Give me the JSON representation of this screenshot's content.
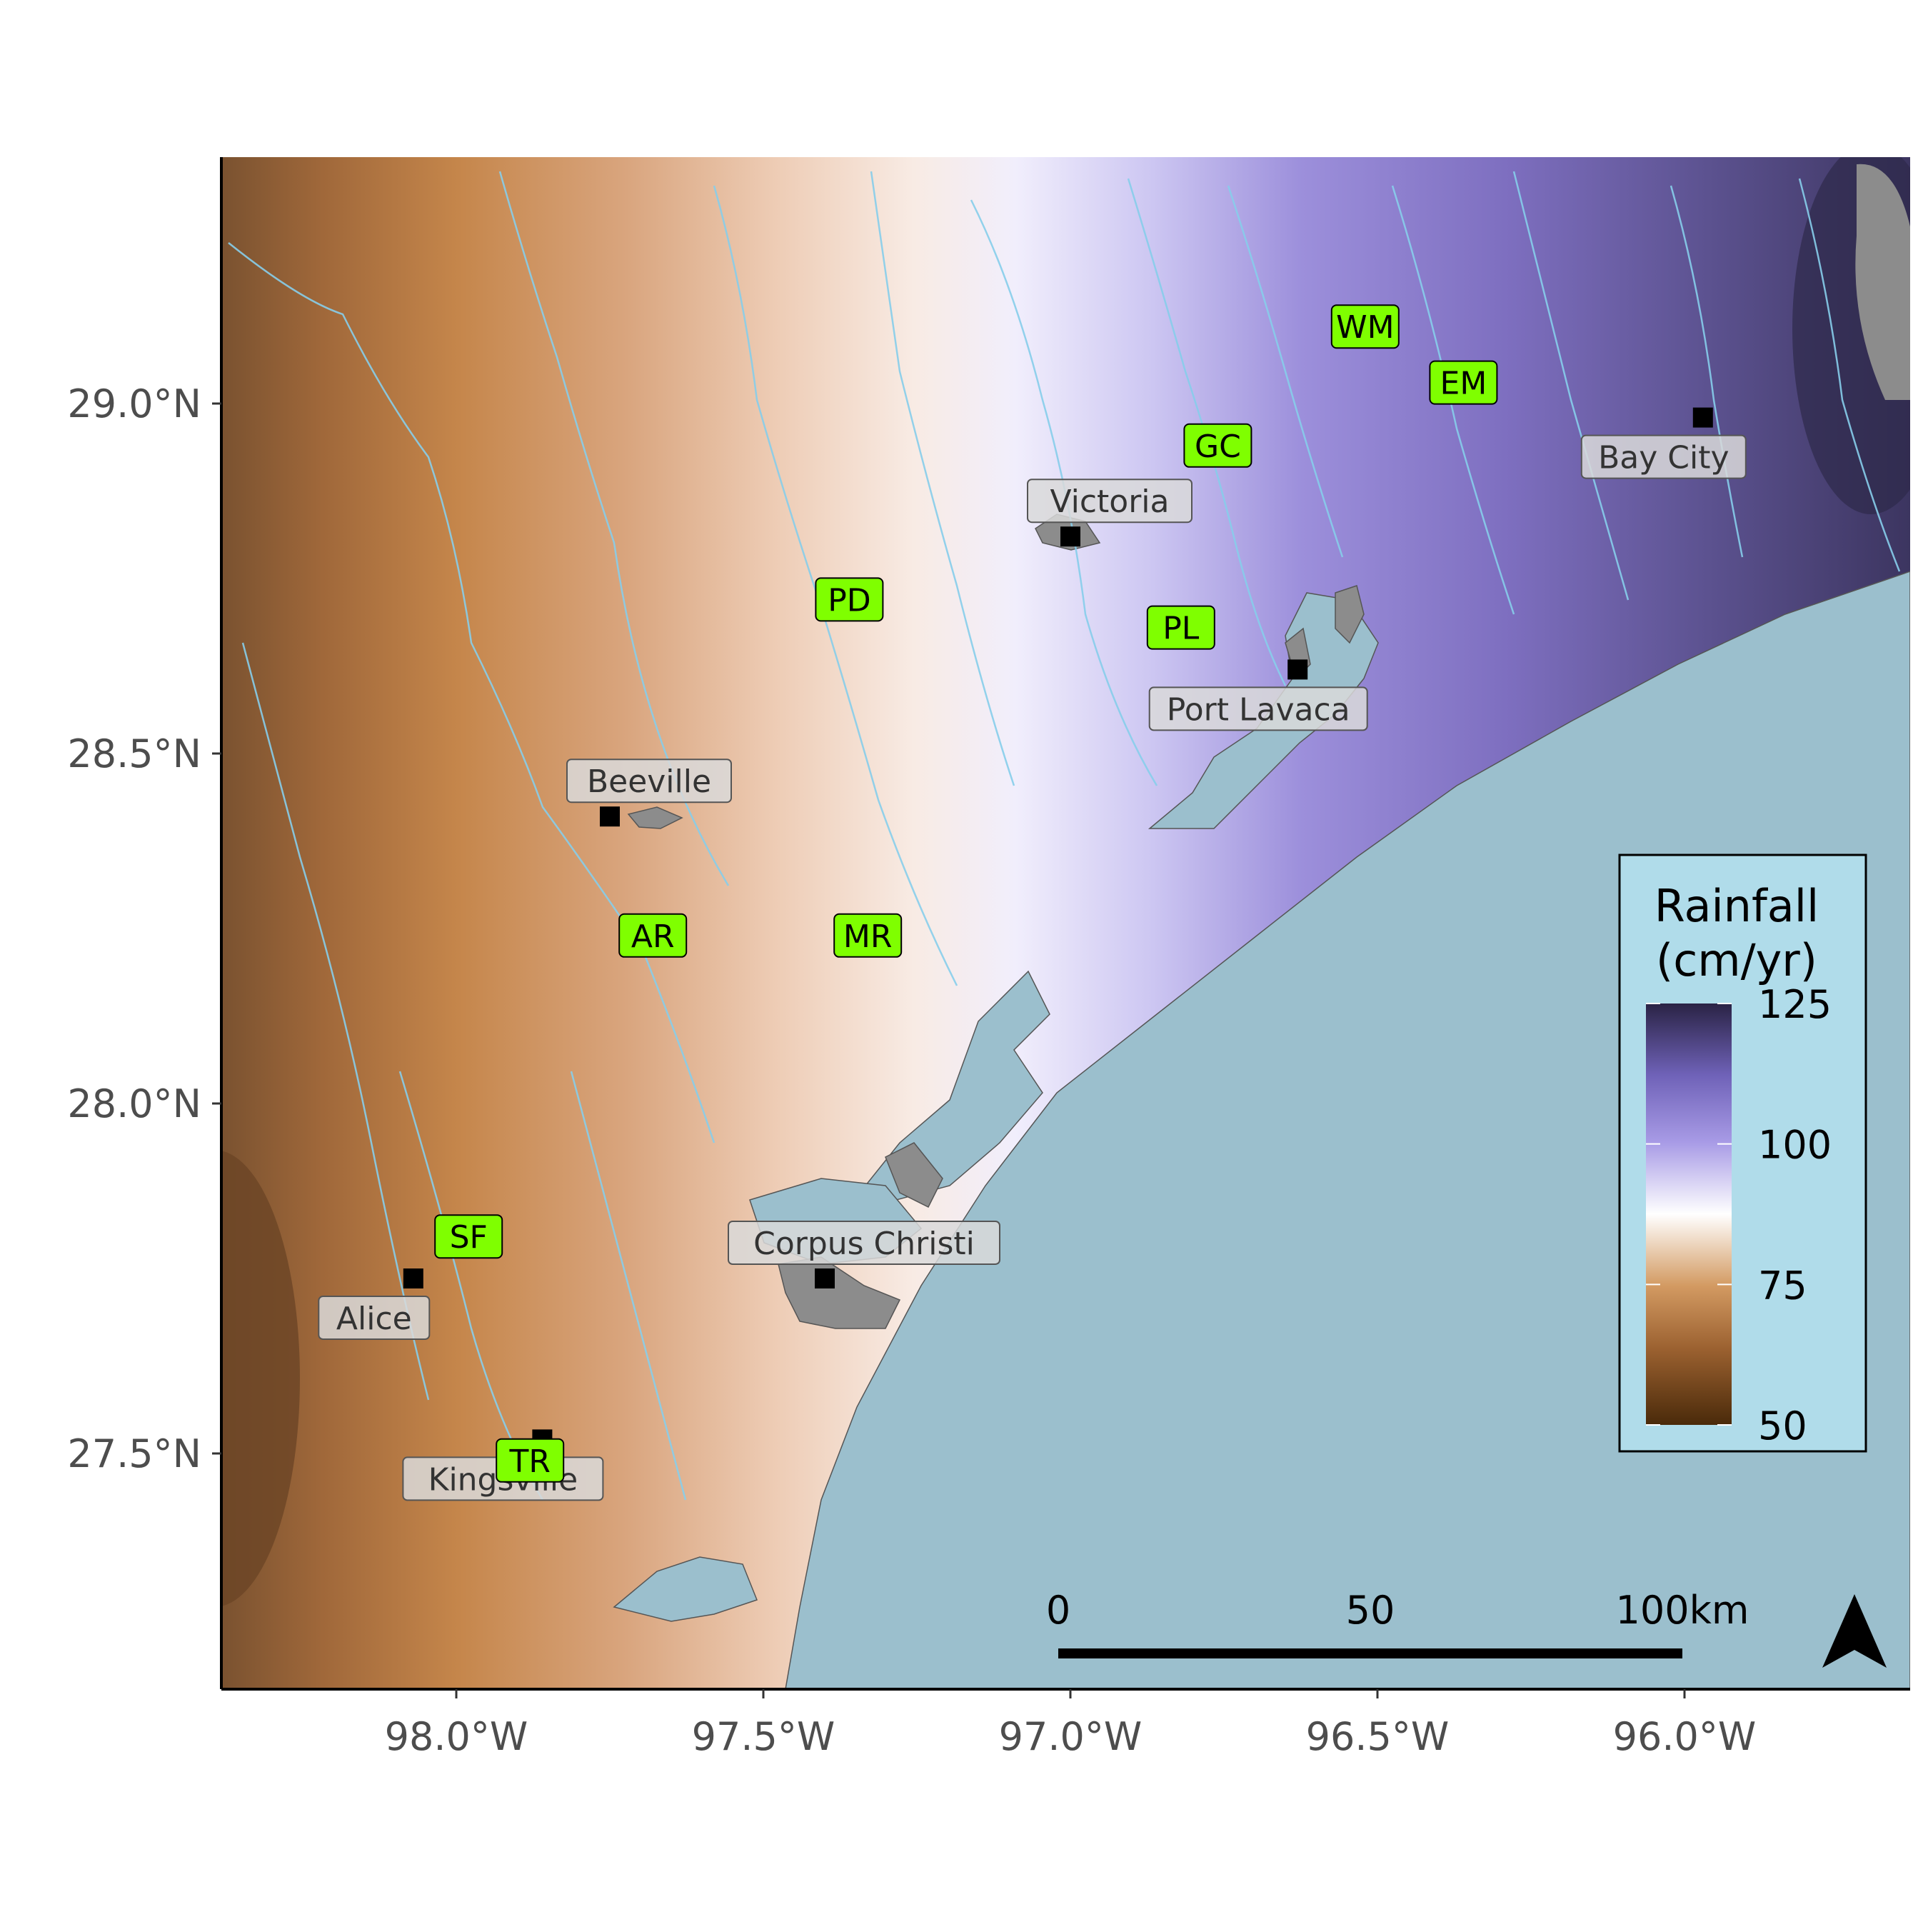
{
  "axes": {
    "x_ticks": [
      {
        "value": -98.0,
        "label": "98.0°W"
      },
      {
        "value": -97.5,
        "label": "97.5°W"
      },
      {
        "value": -97.0,
        "label": "97.0°W"
      },
      {
        "value": -96.5,
        "label": "96.5°W"
      },
      {
        "value": -96.0,
        "label": "96.0°W"
      }
    ],
    "y_ticks": [
      {
        "value": 29.0,
        "label": "29.0°N"
      },
      {
        "value": 28.5,
        "label": "28.5°N"
      },
      {
        "value": 28.0,
        "label": "28.0°N"
      },
      {
        "value": 27.5,
        "label": "27.5°N"
      }
    ]
  },
  "legend": {
    "title_line1": "Rainfall",
    "title_line2": "(cm/yr)",
    "ticks": [
      {
        "value": 125,
        "label": "125"
      },
      {
        "value": 100,
        "label": "100"
      },
      {
        "value": 75,
        "label": "75"
      },
      {
        "value": 50,
        "label": "50"
      }
    ],
    "range": [
      50,
      125
    ],
    "colors": {
      "low": "#4a2a0a",
      "mid_low": "#c8874a",
      "mid": "#ffffff",
      "mid_high": "#9b8be0",
      "high": "#2a2345"
    },
    "background": "#b0dcea"
  },
  "cities": [
    {
      "name": "Victoria",
      "lon": -97.0,
      "lat": 28.81
    },
    {
      "name": "Bay City",
      "lon": -95.97,
      "lat": 28.98
    },
    {
      "name": "Port Lavaca",
      "lon": -96.63,
      "lat": 28.62
    },
    {
      "name": "Beeville",
      "lon": -97.75,
      "lat": 28.41
    },
    {
      "name": "Corpus Christi",
      "lon": -97.4,
      "lat": 27.75
    },
    {
      "name": "Alice",
      "lon": -98.07,
      "lat": 27.75
    },
    {
      "name": "Kingsville",
      "lon": -97.86,
      "lat": 27.52
    }
  ],
  "stations": [
    {
      "code": "WM",
      "lon": -96.52,
      "lat": 29.11
    },
    {
      "code": "EM",
      "lon": -96.36,
      "lat": 29.03
    },
    {
      "code": "GC",
      "lon": -96.76,
      "lat": 28.94
    },
    {
      "code": "PD",
      "lon": -97.36,
      "lat": 28.72
    },
    {
      "code": "PL",
      "lon": -96.82,
      "lat": 28.68
    },
    {
      "code": "AR",
      "lon": -97.68,
      "lat": 28.24
    },
    {
      "code": "MR",
      "lon": -97.33,
      "lat": 28.24
    },
    {
      "code": "SF",
      "lon": -97.98,
      "lat": 27.81
    },
    {
      "code": "TR",
      "lon": -97.88,
      "lat": 27.49
    }
  ],
  "scale_bar": {
    "labels": [
      "0",
      "50",
      "100km"
    ]
  },
  "colors": {
    "water": "#9bbfcd",
    "river": "#87ceeb",
    "urban": "#8c8c8c",
    "station": "#7fff00",
    "city_label": "#d9d9d9"
  },
  "icons": {
    "north_arrow": "north-arrow-icon"
  }
}
